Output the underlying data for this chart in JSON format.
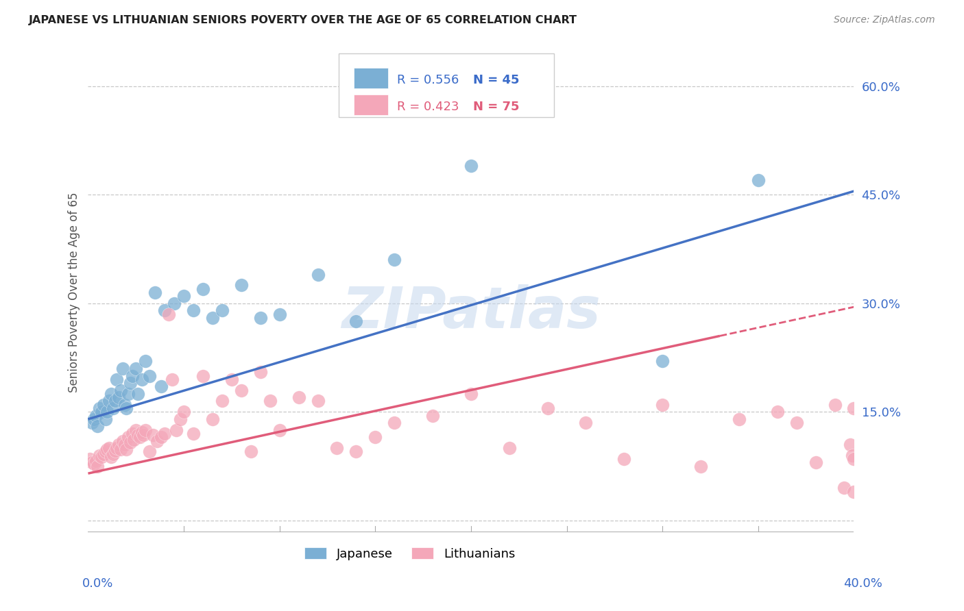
{
  "title": "JAPANESE VS LITHUANIAN SENIORS POVERTY OVER THE AGE OF 65 CORRELATION CHART",
  "source": "Source: ZipAtlas.com",
  "ylabel": "Seniors Poverty Over the Age of 65",
  "y_ticks": [
    0.0,
    0.15,
    0.3,
    0.45,
    0.6
  ],
  "y_tick_labels": [
    "",
    "15.0%",
    "30.0%",
    "45.0%",
    "60.0%"
  ],
  "x_range": [
    0.0,
    0.4
  ],
  "y_range": [
    -0.02,
    0.65
  ],
  "watermark": "ZIPatlas",
  "japanese_color": "#7bafd4",
  "japanese_line_color": "#4472c4",
  "lithuanian_color": "#f4a7b9",
  "lithuanian_line_color": "#e05c7a",
  "R_japanese": 0.556,
  "N_japanese": 45,
  "R_lithuanian": 0.423,
  "N_lithuanian": 75,
  "japanese_x": [
    0.002,
    0.003,
    0.004,
    0.005,
    0.006,
    0.007,
    0.008,
    0.009,
    0.01,
    0.011,
    0.012,
    0.013,
    0.014,
    0.015,
    0.016,
    0.017,
    0.018,
    0.019,
    0.02,
    0.021,
    0.022,
    0.023,
    0.025,
    0.026,
    0.028,
    0.03,
    0.032,
    0.035,
    0.038,
    0.04,
    0.045,
    0.05,
    0.055,
    0.06,
    0.065,
    0.07,
    0.08,
    0.09,
    0.1,
    0.12,
    0.14,
    0.16,
    0.2,
    0.3,
    0.35
  ],
  "japanese_y": [
    0.135,
    0.14,
    0.145,
    0.13,
    0.155,
    0.15,
    0.16,
    0.14,
    0.15,
    0.165,
    0.175,
    0.155,
    0.165,
    0.195,
    0.17,
    0.18,
    0.21,
    0.16,
    0.155,
    0.175,
    0.19,
    0.2,
    0.21,
    0.175,
    0.195,
    0.22,
    0.2,
    0.315,
    0.185,
    0.29,
    0.3,
    0.31,
    0.29,
    0.32,
    0.28,
    0.29,
    0.325,
    0.28,
    0.285,
    0.34,
    0.275,
    0.36,
    0.49,
    0.22,
    0.47
  ],
  "lithuanian_x": [
    0.001,
    0.002,
    0.003,
    0.004,
    0.005,
    0.006,
    0.007,
    0.008,
    0.009,
    0.01,
    0.011,
    0.012,
    0.013,
    0.014,
    0.015,
    0.016,
    0.017,
    0.018,
    0.019,
    0.02,
    0.021,
    0.022,
    0.023,
    0.024,
    0.025,
    0.026,
    0.027,
    0.028,
    0.029,
    0.03,
    0.032,
    0.034,
    0.036,
    0.038,
    0.04,
    0.042,
    0.044,
    0.046,
    0.048,
    0.05,
    0.055,
    0.06,
    0.065,
    0.07,
    0.075,
    0.08,
    0.085,
    0.09,
    0.095,
    0.1,
    0.11,
    0.12,
    0.13,
    0.14,
    0.15,
    0.16,
    0.18,
    0.2,
    0.22,
    0.24,
    0.26,
    0.28,
    0.3,
    0.32,
    0.34,
    0.36,
    0.37,
    0.38,
    0.39,
    0.395,
    0.398,
    0.399,
    0.4,
    0.4,
    0.4
  ],
  "lithuanian_y": [
    0.085,
    0.08,
    0.078,
    0.082,
    0.075,
    0.09,
    0.088,
    0.092,
    0.095,
    0.098,
    0.1,
    0.088,
    0.092,
    0.096,
    0.1,
    0.105,
    0.098,
    0.11,
    0.105,
    0.098,
    0.115,
    0.108,
    0.12,
    0.112,
    0.125,
    0.118,
    0.115,
    0.122,
    0.118,
    0.125,
    0.095,
    0.118,
    0.11,
    0.115,
    0.12,
    0.285,
    0.195,
    0.125,
    0.14,
    0.15,
    0.12,
    0.2,
    0.14,
    0.165,
    0.195,
    0.18,
    0.095,
    0.205,
    0.165,
    0.125,
    0.17,
    0.165,
    0.1,
    0.095,
    0.115,
    0.135,
    0.145,
    0.175,
    0.1,
    0.155,
    0.135,
    0.085,
    0.16,
    0.075,
    0.14,
    0.15,
    0.135,
    0.08,
    0.16,
    0.045,
    0.105,
    0.09,
    0.155,
    0.085,
    0.04
  ],
  "jp_line_x0": 0.0,
  "jp_line_x1": 0.4,
  "jp_line_y0": 0.14,
  "jp_line_y1": 0.455,
  "lt_line_x0": 0.0,
  "lt_line_x1": 0.33,
  "lt_line_x1_dash": 0.4,
  "lt_line_y0": 0.065,
  "lt_line_y1": 0.255,
  "lt_line_y1_dash": 0.295
}
